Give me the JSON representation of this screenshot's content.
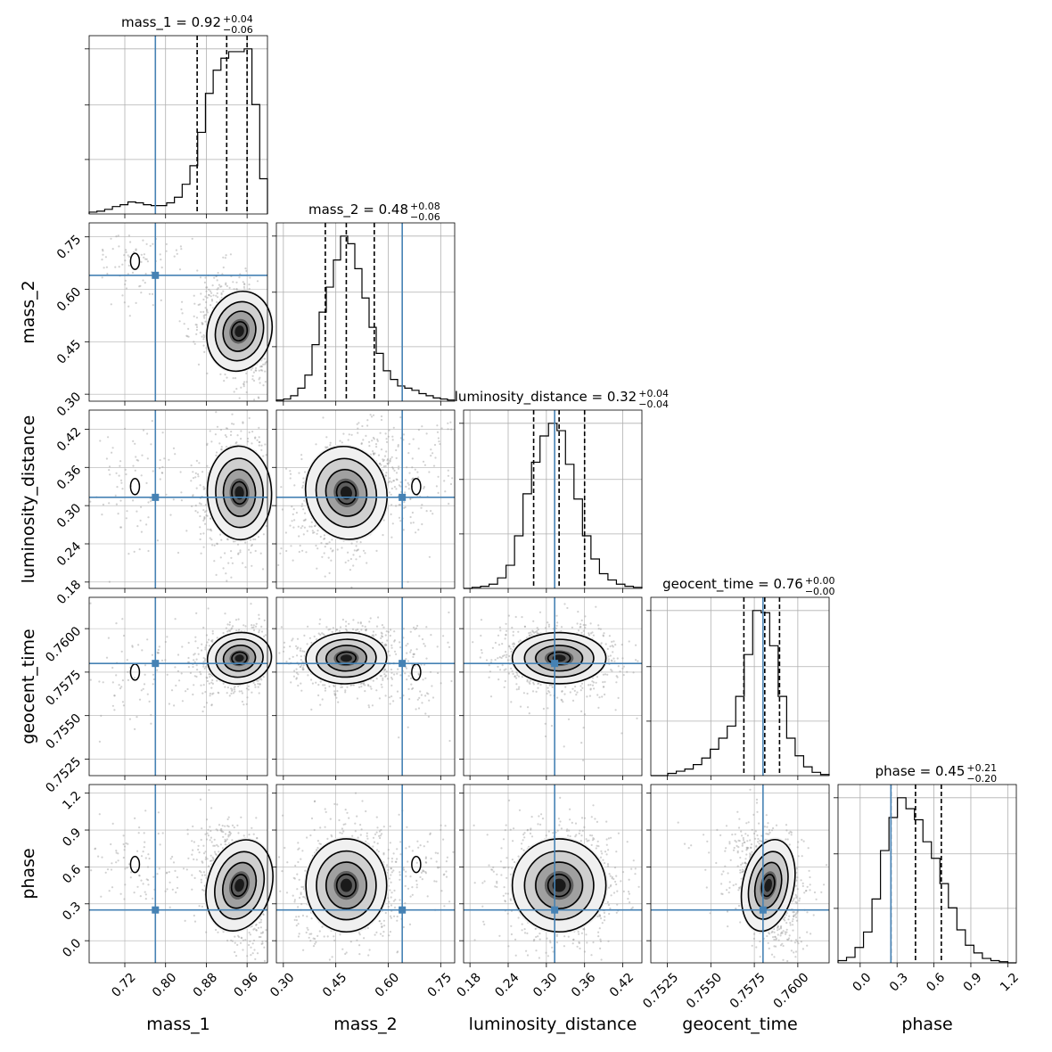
{
  "chart_data": {
    "type": "corner",
    "parameters": [
      "mass_1",
      "mass_2",
      "luminosity_distance",
      "geocent_time",
      "phase"
    ],
    "axis_labels": [
      "mass_1",
      "mass_2",
      "luminosity_distance",
      "geocent_time",
      "phase"
    ],
    "ranges": [
      [
        0.65,
        1.0
      ],
      [
        0.28,
        0.79
      ],
      [
        0.17,
        0.45
      ],
      [
        0.75155,
        0.7618
      ],
      [
        -0.18,
        1.27
      ]
    ],
    "ticks": [
      [
        0.72,
        0.8,
        0.88,
        0.96
      ],
      [
        0.3,
        0.45,
        0.6,
        0.75
      ],
      [
        0.18,
        0.24,
        0.3,
        0.36,
        0.42
      ],
      [
        0.7525,
        0.755,
        0.7575,
        0.76
      ],
      [
        0.0,
        0.3,
        0.6,
        0.9,
        1.2
      ]
    ],
    "tick_labels": [
      [
        "0.72",
        "0.80",
        "0.88",
        "0.96"
      ],
      [
        "0.30",
        "0.45",
        "0.60",
        "0.75"
      ],
      [
        "0.18",
        "0.24",
        "0.30",
        "0.36",
        "0.42"
      ],
      [
        "0.7525",
        "0.7550",
        "0.7575",
        "0.7600"
      ],
      [
        "0.0",
        "0.3",
        "0.6",
        "0.9",
        "1.2"
      ]
    ],
    "truths": [
      0.78,
      0.64,
      0.313,
      0.758,
      0.25
    ],
    "titles": [
      {
        "name": "mass_1",
        "median": "0.92",
        "plus": "+0.04",
        "minus": "−0.06"
      },
      {
        "name": "mass_2",
        "median": "0.48",
        "plus": "+0.08",
        "minus": "−0.06"
      },
      {
        "name": "luminosity_distance",
        "median": "0.32",
        "plus": "+0.04",
        "minus": "−0.04"
      },
      {
        "name": "geocent_time",
        "median": "0.76",
        "plus": "+0.00",
        "minus": "−0.00"
      },
      {
        "name": "phase",
        "median": "0.45",
        "plus": "+0.21",
        "minus": "−0.20"
      }
    ],
    "quantiles": [
      [
        0.862,
        0.92,
        0.96
      ],
      [
        0.42,
        0.48,
        0.56
      ],
      [
        0.28,
        0.32,
        0.36
      ],
      [
        0.7569,
        0.7581,
        0.75895
      ],
      [
        0.25,
        0.45,
        0.66
      ]
    ],
    "histograms": [
      {
        "edges_range": [
          0.65,
          1.0
        ],
        "counts": [
          2,
          3,
          5,
          8,
          10,
          13,
          12,
          10,
          9,
          9,
          12,
          18,
          32,
          52,
          88,
          130,
          155,
          168,
          175,
          175,
          178,
          118,
          38
        ]
      },
      {
        "edges_range": [
          0.28,
          0.79
        ],
        "counts": [
          1,
          2,
          5,
          12,
          24,
          52,
          82,
          105,
          130,
          152,
          145,
          122,
          95,
          68,
          44,
          28,
          20,
          14,
          12,
          10,
          7,
          5,
          3,
          2,
          1
        ]
      },
      {
        "edges_range": [
          0.17,
          0.45
        ],
        "counts": [
          0,
          1,
          2,
          4,
          10,
          22,
          50,
          90,
          120,
          145,
          157,
          150,
          118,
          85,
          50,
          28,
          14,
          8,
          4,
          2,
          1
        ]
      },
      {
        "edges_range": [
          0.75155,
          0.7618
        ],
        "counts": [
          0,
          0,
          2,
          4,
          6,
          10,
          16,
          24,
          34,
          45,
          72,
          110,
          150,
          148,
          118,
          72,
          34,
          18,
          8,
          3,
          1
        ]
      },
      {
        "edges_range": [
          -0.18,
          1.27
        ],
        "counts": [
          2,
          5,
          14,
          28,
          58,
          102,
          132,
          150,
          140,
          130,
          110,
          95,
          72,
          50,
          30,
          16,
          9,
          4,
          2,
          1,
          0
        ]
      }
    ],
    "modes": {
      "mass_1": [
        {
          "w": 1.0,
          "mean": 0.945,
          "sd": 0.03
        },
        {
          "w": 0.08,
          "mean": 0.74,
          "sd": 0.035
        }
      ],
      "mass_2": [
        {
          "w": 1.0,
          "mean": 0.48,
          "sd": 0.055
        },
        {
          "w": 0.08,
          "mean": 0.68,
          "sd": 0.04
        }
      ],
      "luminosity_distance": [
        {
          "w": 1.0,
          "mean": 0.32,
          "sd": 0.035
        },
        {
          "w": 0.08,
          "mean": 0.33,
          "sd": 0.03
        }
      ],
      "geocent_time": [
        {
          "w": 1.0,
          "mean": 0.7583,
          "sd": 0.0007
        },
        {
          "w": 0.08,
          "mean": 0.7575,
          "sd": 0.0012
        }
      ],
      "phase": [
        {
          "w": 1.0,
          "mean": 0.45,
          "sd": 0.18
        },
        {
          "w": 0.08,
          "mean": 0.62,
          "sd": 0.12
        }
      ]
    },
    "grid": true,
    "colors": {
      "truth": "#4682b4",
      "line": "#000000",
      "scatter": "#9a9a9a",
      "grid": "#b0b0b0"
    }
  }
}
